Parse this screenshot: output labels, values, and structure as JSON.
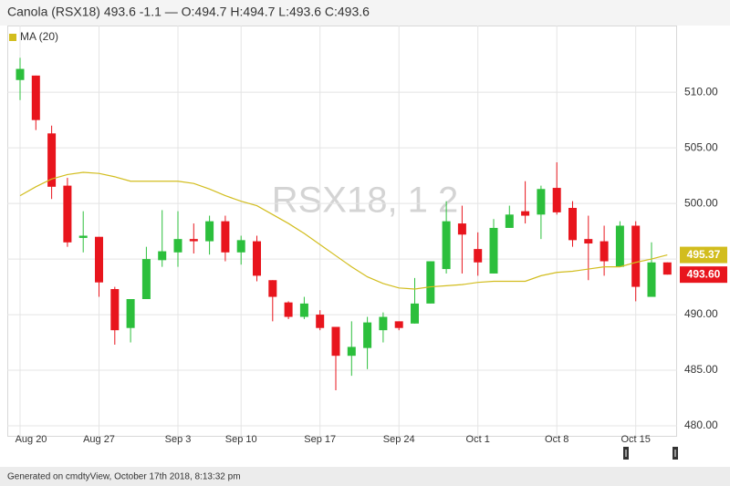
{
  "chart_data": {
    "type": "candlestick",
    "title": "Canola (RSX18) 493.6 -1.1 — O:494.7 H:494.7 L:493.6 C:493.6",
    "watermark": "RSX18, 1 2",
    "footer": "Generated on cmdtyView, October 17th 2018, 8:13:32 pm",
    "categories": [
      "Aug 20",
      null,
      null,
      null,
      null,
      "Aug 27",
      null,
      null,
      null,
      null,
      "Sep 3",
      null,
      null,
      null,
      "Sep 10",
      null,
      null,
      null,
      null,
      "Sep 17",
      null,
      null,
      null,
      null,
      "Sep 24",
      null,
      null,
      null,
      null,
      "Oct 1",
      null,
      null,
      null,
      null,
      "Oct 8",
      null,
      null,
      null,
      null,
      "Oct 15",
      null,
      null
    ],
    "open": [
      511.1,
      511.5,
      506.3,
      501.6,
      496.9,
      497.0,
      492.3,
      488.8,
      491.4,
      494.9,
      495.6,
      496.8,
      496.6,
      498.4,
      495.6,
      496.6,
      493.1,
      491.1,
      489.8,
      490.0,
      488.9,
      486.3,
      487.0,
      488.6,
      489.4,
      489.2,
      491.0,
      494.1,
      498.2,
      495.9,
      493.7,
      497.8,
      499.3,
      499.0,
      501.4,
      499.6,
      496.8,
      496.6,
      494.3,
      498.0,
      491.6,
      494.7
    ],
    "high": [
      513.1,
      511.5,
      507.0,
      502.3,
      499.3,
      497.0,
      492.5,
      491.4,
      496.1,
      499.4,
      499.3,
      498.2,
      498.9,
      498.9,
      497.1,
      497.1,
      493.1,
      491.2,
      491.6,
      490.4,
      488.9,
      489.4,
      489.8,
      490.2,
      489.4,
      493.3,
      494.8,
      500.2,
      499.8,
      497.4,
      498.6,
      499.8,
      502.0,
      501.6,
      503.7,
      500.2,
      498.9,
      498.0,
      498.4,
      498.4,
      496.5,
      494.7
    ],
    "low": [
      509.3,
      506.6,
      500.4,
      496.1,
      495.6,
      491.6,
      487.3,
      487.5,
      491.4,
      494.3,
      494.3,
      495.5,
      495.4,
      494.8,
      494.5,
      493.0,
      489.4,
      489.6,
      489.6,
      488.6,
      483.2,
      484.5,
      485.1,
      487.5,
      488.6,
      489.2,
      491.0,
      493.7,
      493.7,
      493.5,
      493.7,
      497.8,
      498.2,
      496.8,
      499.0,
      496.1,
      493.1,
      493.5,
      494.3,
      491.2,
      491.6,
      493.6
    ],
    "close": [
      512.1,
      507.5,
      501.5,
      496.5,
      497.1,
      492.9,
      488.6,
      491.4,
      495.0,
      495.7,
      496.8,
      496.6,
      498.4,
      495.6,
      496.7,
      493.5,
      491.6,
      489.8,
      491.0,
      488.8,
      486.3,
      487.1,
      489.3,
      489.8,
      488.8,
      491.0,
      494.8,
      498.4,
      497.2,
      494.7,
      497.8,
      499.0,
      498.9,
      501.3,
      499.2,
      496.7,
      496.4,
      494.8,
      498.0,
      492.5,
      494.7,
      493.6
    ],
    "close_value_labels": [
      null,
      null,
      null,
      null,
      null,
      null,
      null,
      null,
      null,
      null,
      null,
      null,
      null,
      null,
      null,
      null,
      null,
      null,
      null,
      null,
      null,
      null,
      null,
      null,
      null,
      null,
      null,
      null,
      null,
      null,
      null,
      null,
      null,
      null,
      null,
      null,
      null,
      null,
      null,
      null,
      null,
      "493.60"
    ],
    "up_color": "#2cbf3c",
    "down_color": "#e8151d",
    "overlays": [
      {
        "name": "MA (20)",
        "color": "#d2bd1e",
        "values": [
          500.7,
          501.5,
          502.2,
          502.6,
          502.8,
          502.7,
          502.4,
          502.0,
          502.0,
          502.0,
          502.0,
          501.8,
          501.3,
          500.7,
          500.2,
          499.8,
          499.0,
          498.2,
          497.3,
          496.3,
          495.3,
          494.3,
          493.4,
          492.8,
          492.4,
          492.3,
          492.5,
          492.6,
          492.7,
          492.9,
          493.0,
          493.0,
          493.0,
          493.5,
          493.8,
          493.9,
          494.1,
          494.3,
          494.3,
          494.7,
          495.0,
          495.37
        ],
        "value_labels": [
          null,
          null,
          null,
          null,
          null,
          null,
          null,
          null,
          null,
          null,
          null,
          null,
          null,
          null,
          null,
          null,
          null,
          null,
          null,
          null,
          null,
          null,
          null,
          null,
          null,
          null,
          null,
          null,
          null,
          null,
          null,
          null,
          null,
          null,
          null,
          null,
          null,
          null,
          null,
          null,
          null,
          "495.37"
        ]
      }
    ],
    "ylim": [
      479.1,
      516
    ],
    "yticks": [
      {
        "value": 480,
        "label": "480.00"
      },
      {
        "value": 485,
        "label": "485.00"
      },
      {
        "value": 490,
        "label": "490.00"
      },
      {
        "value": 495,
        "label": "495.00"
      },
      {
        "value": 500,
        "label": "500.00"
      },
      {
        "value": 505,
        "label": "505.00"
      },
      {
        "value": 510,
        "label": "510.00"
      }
    ],
    "grid": true
  }
}
